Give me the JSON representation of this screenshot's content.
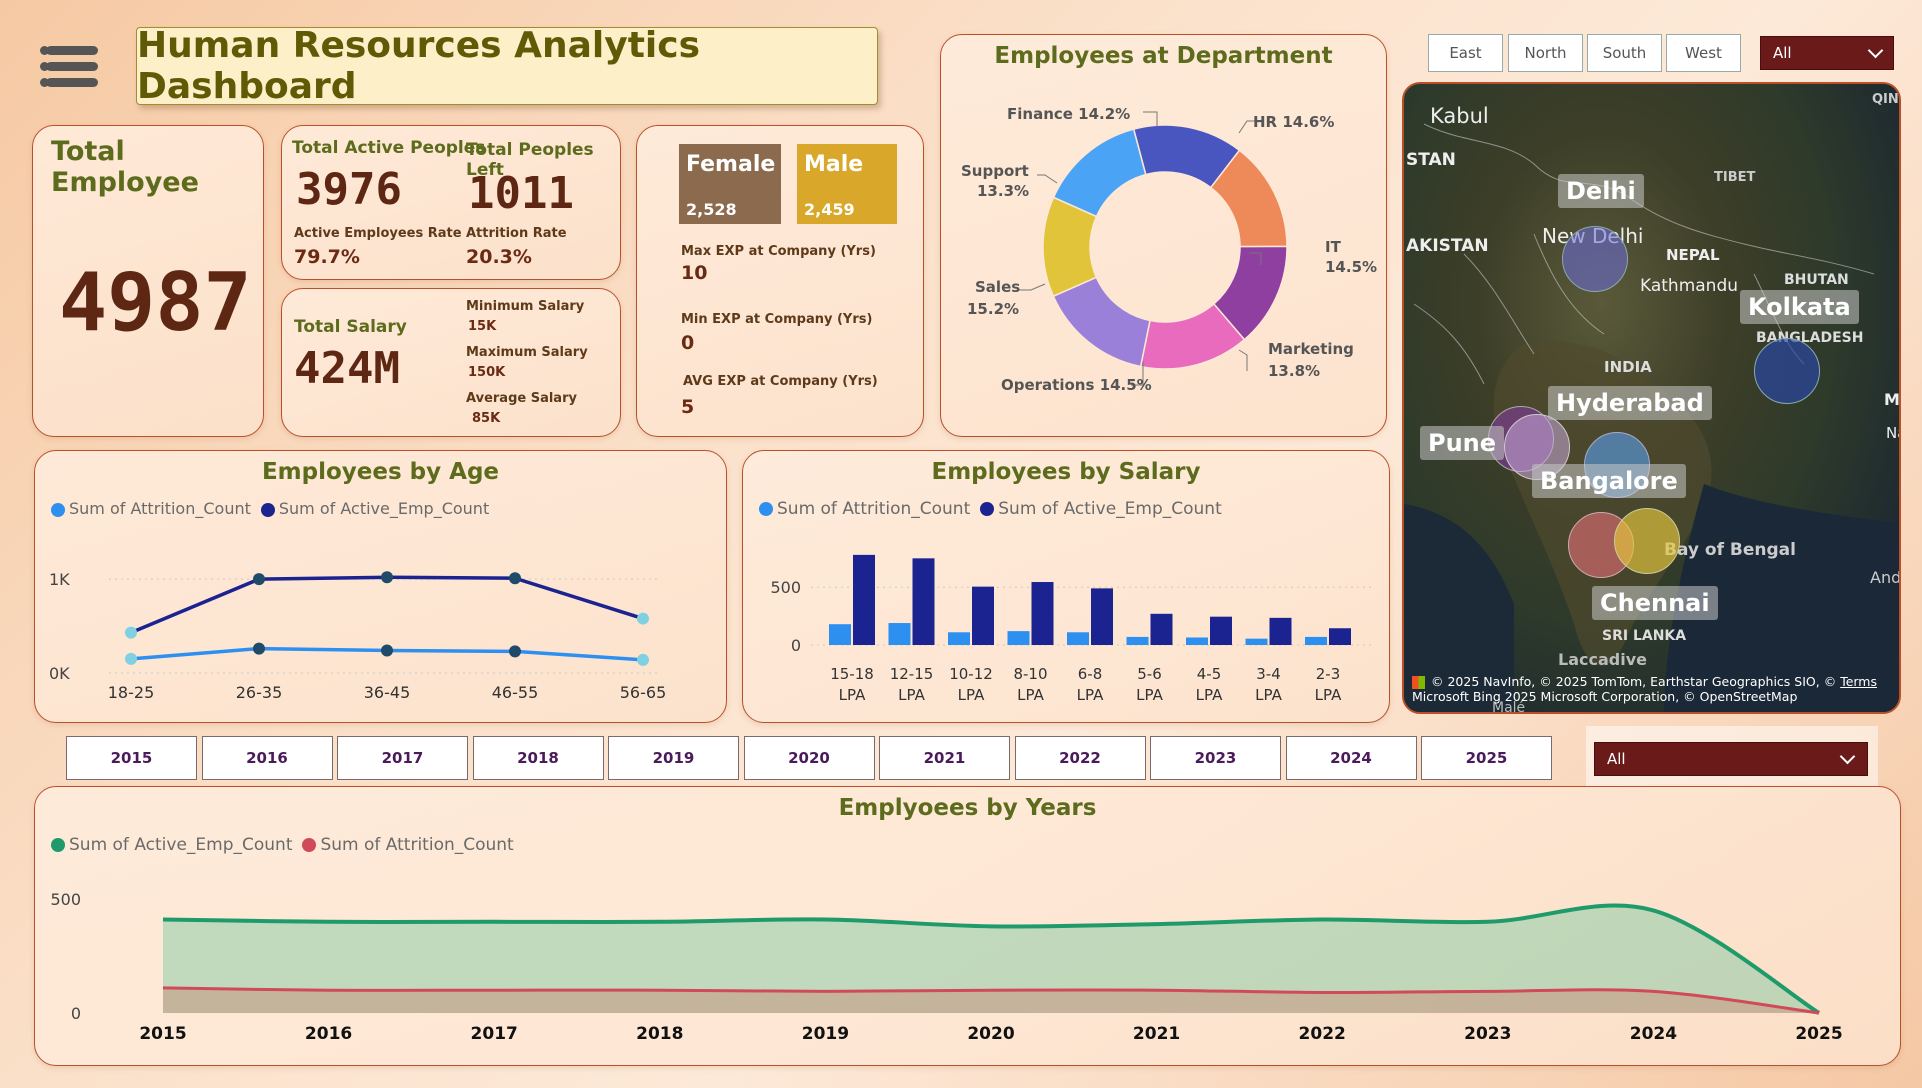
{
  "header": {
    "title": "Human Resources Analytics Dashboard",
    "menu_icon": "hamburger-menu-icon"
  },
  "total_employee": {
    "label": "Total Employee",
    "value": "4987"
  },
  "active": {
    "label": "Total Active Peoples",
    "value": "3976",
    "rate_label": "Active Employees Rate",
    "rate_value": "79.7%"
  },
  "left": {
    "label": "Total Peoples Left",
    "value": "1011",
    "rate_label": "Attrition Rate",
    "rate_value": "20.3%"
  },
  "salary": {
    "label": "Total Salary",
    "value": "424M",
    "min_label": "Minimum Salary",
    "min_value": "15K",
    "max_label": "Maximum Salary",
    "max_value": "150K",
    "avg_label": "Average Salary",
    "avg_value": "85K"
  },
  "gender": {
    "female_label": "Female",
    "female_value": "2,528",
    "male_label": "Male",
    "male_value": "2,459",
    "female_color": "#8c6a4e",
    "male_color": "#d9a82a"
  },
  "experience": {
    "max_label": "Max EXP at Company (Yrs)",
    "max_value": "10",
    "min_label": "Min EXP at Company (Yrs)",
    "min_value": "0",
    "avg_label": "AVG EXP at Company (Yrs)",
    "avg_value": "5"
  },
  "region_slicer": {
    "buttons": [
      "East",
      "North",
      "South",
      "West"
    ],
    "dropdown_value": "All"
  },
  "year_slicer": {
    "years": [
      "2015",
      "2016",
      "2017",
      "2018",
      "2019",
      "2020",
      "2021",
      "2022",
      "2023",
      "2024",
      "2025"
    ],
    "dropdown_value": "All"
  },
  "map": {
    "cities": [
      "Delhi",
      "Kolkata",
      "Hyderabad",
      "Pune",
      "Bangalore",
      "Chennai"
    ],
    "geo_labels": [
      "Kabul",
      "STAN",
      "AKISTAN",
      "New Delhi",
      "TIBET",
      "NEPAL",
      "Kathmandu",
      "BHUTAN",
      "BANGLADESH",
      "INDIA",
      "MY",
      "Na",
      "Bay of Bengal",
      "And",
      "Laccadive",
      "SRI LANKA",
      "Malé",
      "QIN"
    ],
    "attribution_line1": "© 2025 NavInfo, © 2025 TomTom, Earthstar Geographics SIO, ©",
    "attribution_terms": "Terms",
    "attribution_line2": "2025 Microsoft Corporation, © OpenStreetMap",
    "bing": "Microsoft Bing"
  },
  "chart_data": [
    {
      "type": "pie",
      "title": "Employees at Department",
      "categories": [
        "HR",
        "IT",
        "Marketing",
        "Operations",
        "Sales",
        "Support",
        "Finance"
      ],
      "values": [
        14.6,
        14.5,
        13.8,
        14.5,
        15.2,
        13.3,
        14.2
      ],
      "labels": [
        "HR 14.6%",
        "IT",
        "14.5%",
        "Marketing",
        "13.8%",
        "Operations 14.5%",
        "Sales",
        "15.2%",
        "Support",
        "13.3%",
        "Finance 14.2%"
      ],
      "colors": [
        "#4a56c0",
        "#ee8a5a",
        "#8e3fa0",
        "#e86bbe",
        "#9a80d8",
        "#e2c43a",
        "#4aa3f5"
      ],
      "donut": true
    },
    {
      "type": "line",
      "title": "Employees by Age",
      "categories": [
        "18-25",
        "26-35",
        "36-45",
        "46-55",
        "56-65"
      ],
      "series": [
        {
          "name": "Sum of Attrition_Count",
          "values": [
            150,
            260,
            240,
            230,
            140
          ],
          "color": "#2d8ff0"
        },
        {
          "name": "Sum of Active_Emp_Count",
          "values": [
            430,
            1000,
            1020,
            1010,
            580
          ],
          "color": "#1a2390"
        }
      ],
      "y_ticks": [
        "0K",
        "1K"
      ],
      "ylim": [
        0,
        1300
      ]
    },
    {
      "type": "bar",
      "title": "Employees by Salary",
      "categories": [
        "15-18 LPA",
        "12-15 LPA",
        "10-12 LPA",
        "8-10 LPA",
        "6-8 LPA",
        "5-6 LPA",
        "4-5 LPA",
        "3-4 LPA",
        "2-3 LPA"
      ],
      "series": [
        {
          "name": "Sum of Attrition_Count",
          "values": [
            180,
            190,
            110,
            120,
            110,
            70,
            65,
            55,
            70
          ],
          "color": "#2d8ff0"
        },
        {
          "name": "Sum of Active_Emp_Count",
          "values": [
            780,
            750,
            505,
            545,
            490,
            270,
            245,
            235,
            145
          ],
          "color": "#1a2390"
        }
      ],
      "y_ticks": [
        "0",
        "500"
      ],
      "ylim": [
        0,
        900
      ]
    },
    {
      "type": "area",
      "title": "Emplyoees by Years",
      "x": [
        "2015",
        "2016",
        "2017",
        "2018",
        "2019",
        "2020",
        "2021",
        "2022",
        "2023",
        "2024",
        "2025"
      ],
      "series": [
        {
          "name": "Sum of Active_Emp_Count",
          "values": [
            410,
            400,
            400,
            400,
            410,
            380,
            390,
            410,
            400,
            450,
            0
          ],
          "color": "#1f9a6a"
        },
        {
          "name": "Sum of Attrition_Count",
          "values": [
            110,
            100,
            100,
            100,
            95,
            100,
            100,
            90,
            95,
            95,
            0
          ],
          "color": "#d04a5a"
        }
      ],
      "y_ticks": [
        "0",
        "500"
      ],
      "ylim": [
        0,
        550
      ]
    }
  ]
}
